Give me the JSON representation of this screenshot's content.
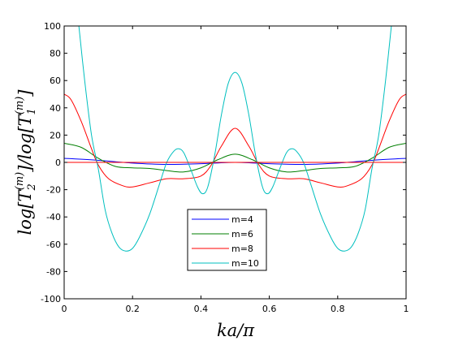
{
  "chart_data": {
    "type": "line",
    "title": "",
    "xlabel": "ka/π",
    "ylabel": "log[T_2^{(m)}]/log[T_1^{(m)}]",
    "ylabel_parts": {
      "log1": "log[",
      "T1": "T",
      "sub1": "2",
      "sup1": "(m)",
      "mid": "]/log[",
      "T2": "T",
      "sub2": "1",
      "sup2": "(m)",
      "end": "]"
    },
    "xlim": [
      0,
      1
    ],
    "ylim": [
      -100,
      100
    ],
    "x_ticks": [
      0,
      0.2,
      0.4,
      0.6,
      0.8,
      1
    ],
    "x_tick_labels": [
      "0",
      "0.2",
      "0.4",
      "0.6",
      "0.8",
      "1"
    ],
    "y_ticks": [
      -100,
      -80,
      -60,
      -40,
      -20,
      0,
      20,
      40,
      60,
      80,
      100
    ],
    "y_tick_labels": [
      "-100",
      "-80",
      "-60",
      "-40",
      "-20",
      "0",
      "20",
      "40",
      "60",
      "80",
      "100"
    ],
    "grid": false,
    "legend_position": "lower-center",
    "series": [
      {
        "name": "m=4",
        "color": "#0000ff",
        "points": [
          [
            0,
            3
          ],
          [
            0.1,
            1.5
          ],
          [
            0.2,
            -0.5
          ],
          [
            0.3,
            -1.5
          ],
          [
            0.4,
            -1
          ],
          [
            0.5,
            0
          ],
          [
            0.6,
            -1
          ],
          [
            0.7,
            -1.5
          ],
          [
            0.8,
            -0.5
          ],
          [
            0.9,
            1.5
          ],
          [
            1,
            3
          ]
        ]
      },
      {
        "name": "m=6",
        "color": "#007f00",
        "points": [
          [
            0,
            14
          ],
          [
            0.05,
            11
          ],
          [
            0.1,
            3
          ],
          [
            0.15,
            -3
          ],
          [
            0.2,
            -4
          ],
          [
            0.25,
            -4.5
          ],
          [
            0.3,
            -6
          ],
          [
            0.35,
            -7
          ],
          [
            0.4,
            -4
          ],
          [
            0.45,
            2
          ],
          [
            0.5,
            6
          ],
          [
            0.55,
            2
          ],
          [
            0.6,
            -4
          ],
          [
            0.65,
            -7
          ],
          [
            0.7,
            -6
          ],
          [
            0.75,
            -4.5
          ],
          [
            0.8,
            -4
          ],
          [
            0.85,
            -3
          ],
          [
            0.9,
            3
          ],
          [
            0.95,
            11
          ],
          [
            1,
            14
          ]
        ]
      },
      {
        "name": "m=8",
        "color": "#ff0000",
        "points": [
          [
            0,
            50
          ],
          [
            0.02,
            46
          ],
          [
            0.05,
            30
          ],
          [
            0.08,
            10
          ],
          [
            0.1,
            -2
          ],
          [
            0.13,
            -12
          ],
          [
            0.17,
            -17
          ],
          [
            0.2,
            -18
          ],
          [
            0.25,
            -15
          ],
          [
            0.3,
            -12
          ],
          [
            0.35,
            -12
          ],
          [
            0.4,
            -10
          ],
          [
            0.43,
            -2
          ],
          [
            0.46,
            12
          ],
          [
            0.5,
            25
          ],
          [
            0.54,
            12
          ],
          [
            0.57,
            -2
          ],
          [
            0.6,
            -10
          ],
          [
            0.65,
            -12
          ],
          [
            0.7,
            -12
          ],
          [
            0.75,
            -15
          ],
          [
            0.8,
            -18
          ],
          [
            0.83,
            -17
          ],
          [
            0.87,
            -12
          ],
          [
            0.9,
            -2
          ],
          [
            0.92,
            10
          ],
          [
            0.95,
            30
          ],
          [
            0.98,
            46
          ],
          [
            1,
            50
          ]
        ]
      },
      {
        "name": "m=10",
        "color": "#00bfbf",
        "points": [
          [
            0.043,
            100
          ],
          [
            0.06,
            60
          ],
          [
            0.08,
            20
          ],
          [
            0.1,
            -5
          ],
          [
            0.12,
            -35
          ],
          [
            0.14,
            -52
          ],
          [
            0.16,
            -62
          ],
          [
            0.18,
            -65
          ],
          [
            0.2,
            -63
          ],
          [
            0.22,
            -55
          ],
          [
            0.25,
            -38
          ],
          [
            0.28,
            -15
          ],
          [
            0.3,
            0
          ],
          [
            0.32,
            8
          ],
          [
            0.335,
            10
          ],
          [
            0.35,
            7
          ],
          [
            0.37,
            -5
          ],
          [
            0.39,
            -18
          ],
          [
            0.405,
            -23
          ],
          [
            0.42,
            -18
          ],
          [
            0.44,
            5
          ],
          [
            0.46,
            35
          ],
          [
            0.48,
            58
          ],
          [
            0.5,
            66
          ],
          [
            0.52,
            58
          ],
          [
            0.54,
            35
          ],
          [
            0.56,
            5
          ],
          [
            0.58,
            -18
          ],
          [
            0.595,
            -23
          ],
          [
            0.61,
            -18
          ],
          [
            0.63,
            -5
          ],
          [
            0.65,
            7
          ],
          [
            0.665,
            10
          ],
          [
            0.68,
            8
          ],
          [
            0.7,
            0
          ],
          [
            0.72,
            -15
          ],
          [
            0.75,
            -38
          ],
          [
            0.78,
            -55
          ],
          [
            0.8,
            -63
          ],
          [
            0.82,
            -65
          ],
          [
            0.84,
            -62
          ],
          [
            0.86,
            -52
          ],
          [
            0.88,
            -35
          ],
          [
            0.9,
            -5
          ],
          [
            0.92,
            20
          ],
          [
            0.94,
            60
          ],
          [
            0.957,
            100
          ]
        ]
      },
      {
        "name": "",
        "color": "#ff0000",
        "points": [
          [
            0,
            0
          ],
          [
            1,
            0
          ]
        ]
      }
    ]
  }
}
